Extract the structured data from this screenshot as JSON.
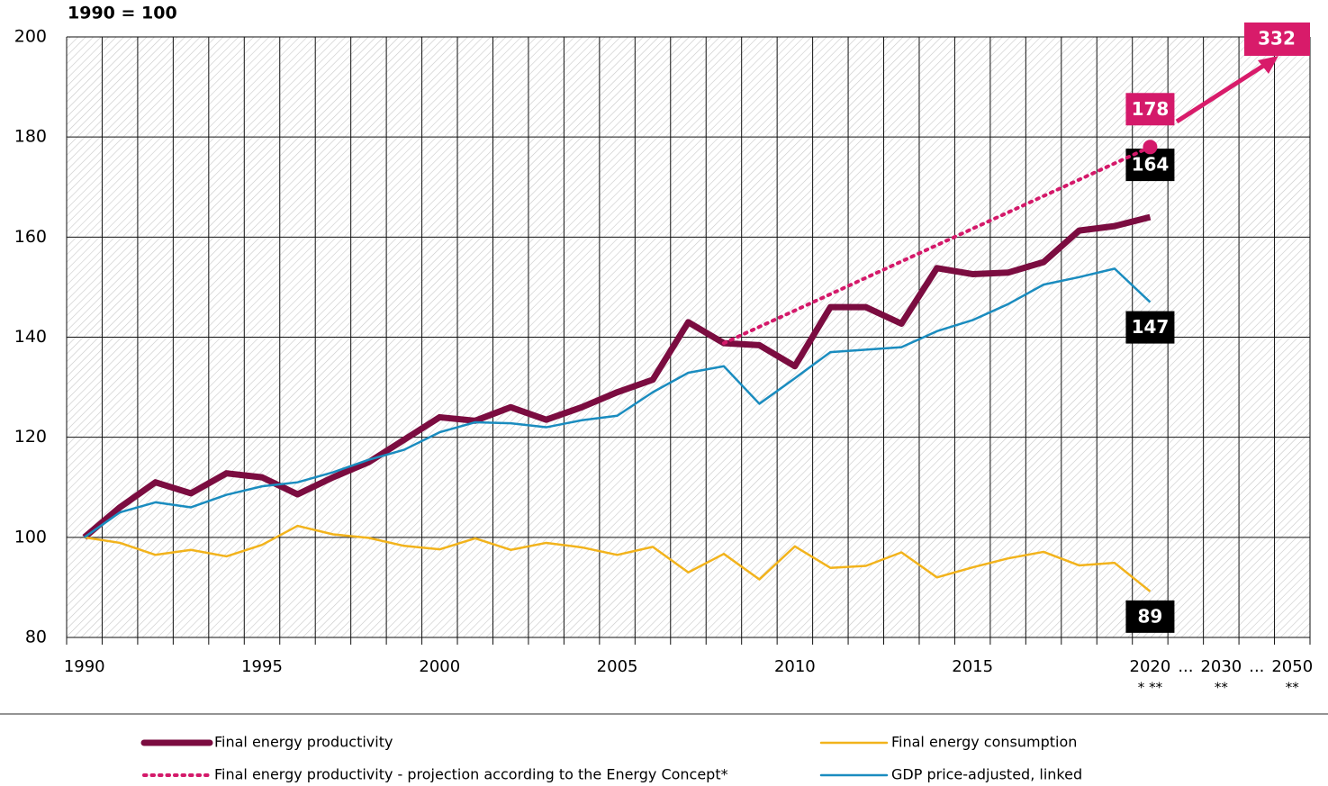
{
  "chart_data": {
    "type": "line",
    "y_axis_label": "1990 = 100",
    "categories": [
      "1990",
      null,
      null,
      null,
      null,
      "1995",
      null,
      null,
      null,
      null,
      "2000",
      null,
      null,
      null,
      null,
      "2005",
      null,
      null,
      null,
      null,
      "2010",
      null,
      null,
      null,
      null,
      "2015",
      null,
      null,
      null,
      null,
      "2020",
      "...",
      "2030",
      "...",
      "2050"
    ],
    "category_notes": [
      null,
      null,
      null,
      null,
      null,
      null,
      null,
      null,
      null,
      null,
      null,
      null,
      null,
      null,
      null,
      null,
      null,
      null,
      null,
      null,
      null,
      null,
      null,
      null,
      null,
      null,
      null,
      null,
      null,
      null,
      "* **",
      null,
      "**",
      null,
      "**"
    ],
    "ylim": [
      80,
      200
    ],
    "yticks": [
      80,
      100,
      120,
      140,
      160,
      180,
      200
    ],
    "grid": true,
    "legend": "bottom",
    "series": [
      {
        "name": "Final energy productivity",
        "color": "#7b0c40",
        "width": 7,
        "style": "solid",
        "label_position": "above",
        "values": [
          100,
          106,
          111,
          108.8,
          112.8,
          112,
          108.6,
          112,
          115,
          119.5,
          124,
          123.3,
          126,
          123.5,
          126,
          129,
          131.5,
          143,
          138.8,
          138.4,
          134.2,
          146,
          146,
          142.7,
          153.8,
          152.6,
          152.9,
          155,
          161.3,
          162.2,
          164,
          null,
          null,
          null,
          null
        ],
        "value_labels": [
          null,
          null,
          null,
          null,
          null,
          null,
          null,
          null,
          null,
          null,
          null,
          null,
          null,
          null,
          null,
          null,
          null,
          null,
          null,
          null,
          null,
          null,
          null,
          null,
          null,
          null,
          null,
          null,
          null,
          null,
          "164",
          null,
          null,
          null,
          null
        ]
      },
      {
        "name": "Final energy productivity - projection according to the Energy Concept*",
        "color": "#d4196a",
        "width": 4,
        "style": "dotted",
        "label_position": "above",
        "end_marker": true,
        "values": [
          null,
          null,
          null,
          null,
          null,
          null,
          null,
          null,
          null,
          null,
          null,
          null,
          null,
          null,
          null,
          null,
          null,
          null,
          138.8,
          142.07,
          145.33,
          148.6,
          151.87,
          155.13,
          158.4,
          161.67,
          164.93,
          168.2,
          171.47,
          174.73,
          178,
          null,
          null,
          null,
          null
        ],
        "value_labels": [
          null,
          null,
          null,
          null,
          null,
          null,
          null,
          null,
          null,
          null,
          null,
          null,
          null,
          null,
          null,
          null,
          null,
          null,
          null,
          null,
          null,
          null,
          null,
          null,
          null,
          null,
          null,
          null,
          null,
          null,
          "178",
          null,
          null,
          null,
          null
        ]
      },
      {
        "name": "Final energy consumption",
        "color": "#f2b31c",
        "width": 2.5,
        "style": "solid",
        "label_position": "below",
        "values": [
          100,
          98.9,
          96.5,
          97.5,
          96.2,
          98.5,
          102.3,
          100.6,
          99.9,
          98.3,
          97.6,
          99.8,
          97.5,
          98.9,
          98,
          96.5,
          98.1,
          93,
          96.7,
          91.6,
          98.2,
          93.9,
          94.3,
          97,
          92,
          94,
          95.8,
          97.1,
          94.4,
          94.9,
          89.2,
          null,
          null,
          null,
          null
        ],
        "value_labels": [
          null,
          null,
          null,
          null,
          null,
          null,
          null,
          null,
          null,
          null,
          null,
          null,
          null,
          null,
          null,
          null,
          null,
          null,
          null,
          null,
          null,
          null,
          null,
          null,
          null,
          null,
          null,
          null,
          null,
          null,
          "89",
          null,
          null,
          null,
          null
        ]
      },
      {
        "name": "GDP price-adjusted, linked",
        "color": "#1a8cbf",
        "width": 2.5,
        "style": "solid",
        "label_position": "below",
        "values": [
          100,
          105,
          107,
          106,
          108.5,
          110.2,
          111,
          113,
          115.5,
          117.5,
          121,
          123,
          122.8,
          122,
          123.4,
          124.3,
          129,
          132.9,
          134.2,
          126.7,
          131.8,
          137,
          137.5,
          138,
          141.2,
          143.4,
          146.6,
          150.5,
          152,
          153.7,
          147,
          null,
          null,
          null,
          null
        ],
        "value_labels": [
          null,
          null,
          null,
          null,
          null,
          null,
          null,
          null,
          null,
          null,
          null,
          null,
          null,
          null,
          null,
          null,
          null,
          null,
          null,
          null,
          null,
          null,
          null,
          null,
          null,
          null,
          null,
          null,
          null,
          null,
          "147",
          null,
          null,
          null,
          null
        ]
      }
    ],
    "annotations": [
      {
        "text": "332",
        "color": "#d81b6a"
      }
    ]
  }
}
